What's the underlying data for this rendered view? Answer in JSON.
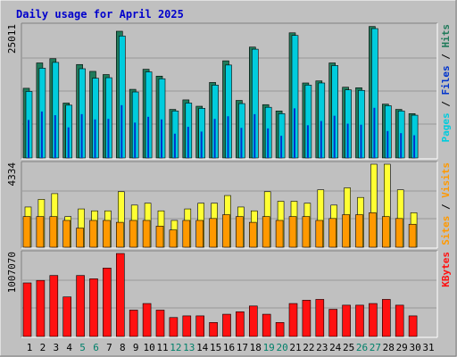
{
  "chart_data": {
    "type": "bar",
    "title": "Daily usage for April 2025",
    "days": [
      "1",
      "2",
      "3",
      "4",
      "5",
      "6",
      "7",
      "8",
      "9",
      "10",
      "11",
      "12",
      "13",
      "14",
      "15",
      "16",
      "17",
      "18",
      "19",
      "20",
      "21",
      "22",
      "23",
      "24",
      "25",
      "26",
      "27",
      "28",
      "29",
      "30",
      "31"
    ],
    "weekend_days": [
      "5",
      "6",
      "12",
      "13",
      "19",
      "20",
      "26",
      "27"
    ],
    "panels": [
      {
        "name": "hits-files-pages",
        "max_label": "25011",
        "ymax": 25011,
        "right_label": {
          "a": "Pages",
          "b": "Files",
          "c": "Hits",
          "sep": " / "
        },
        "series": [
          {
            "name": "Hits",
            "color": "#1f7a5a",
            "values": [
              13200,
              18000,
              18800,
              10400,
              17700,
              16400,
              15800,
              24000,
              13000,
              16800,
              15500,
              9200,
              11000,
              9800,
              14300,
              18400,
              10900,
              21000,
              10100,
              8900,
              23700,
              14200,
              14600,
              18000,
              13400,
              13300,
              24900,
              10200,
              9200,
              8400,
              0
            ]
          },
          {
            "name": "Files",
            "color": "#00ccdd",
            "values": [
              12600,
              17000,
              18100,
              10000,
              16900,
              15100,
              15200,
              23100,
              12500,
              16300,
              15000,
              8900,
              10400,
              9400,
              13800,
              17600,
              10300,
              20600,
              9600,
              8400,
              23200,
              13800,
              14200,
              17500,
              12900,
              12800,
              24500,
              9900,
              8900,
              8100,
              0
            ]
          },
          {
            "name": "Pages",
            "color": "#0033cc",
            "values": [
              7200,
              8800,
              8100,
              5800,
              8300,
              7300,
              7400,
              10000,
              6700,
              7800,
              7300,
              4600,
              5900,
              5000,
              7400,
              7900,
              5700,
              8300,
              5600,
              4200,
              9400,
              6200,
              7000,
              8000,
              6500,
              6300,
              9500,
              5100,
              4700,
              4300,
              0
            ]
          }
        ]
      },
      {
        "name": "visits-sites",
        "max_label": "4334",
        "ymax": 4334,
        "right_label": {
          "a": "Sites",
          "b": "Visits",
          "sep": " / "
        },
        "series": [
          {
            "name": "Visits",
            "color": "#ffff33",
            "values": [
              2100,
              2500,
              2800,
              1600,
              2000,
              1900,
              1900,
              2900,
              2200,
              2300,
              1900,
              1400,
              2000,
              2300,
              2300,
              2700,
              2100,
              1900,
              2900,
              2400,
              2400,
              2300,
              3000,
              2200,
              3100,
              2600,
              4334,
              4334,
              3000,
              1800,
              0
            ]
          },
          {
            "name": "Sites",
            "color": "#ff9900",
            "values": [
              1600,
              1600,
              1600,
              1400,
              1000,
              1400,
              1400,
              1300,
              1400,
              1400,
              1100,
              900,
              1400,
              1400,
              1500,
              1700,
              1600,
              1300,
              1600,
              1400,
              1600,
              1600,
              1400,
              1500,
              1700,
              1700,
              1800,
              1600,
              1500,
              1200,
              0
            ]
          }
        ]
      },
      {
        "name": "kbytes",
        "max_label": "1007070",
        "ymax": 1007070,
        "right_label": {
          "a": "KBytes"
        },
        "series": [
          {
            "name": "KBytes",
            "color": "#ff1111",
            "values": [
              650000,
              680000,
              740000,
              480000,
              740000,
              700000,
              830000,
              1007070,
              320000,
              400000,
              320000,
              230000,
              250000,
              250000,
              170000,
              270000,
              300000,
              370000,
              270000,
              170000,
              400000,
              440000,
              450000,
              330000,
              380000,
              380000,
              400000,
              450000,
              380000,
              250000,
              0
            ]
          }
        ]
      }
    ]
  }
}
